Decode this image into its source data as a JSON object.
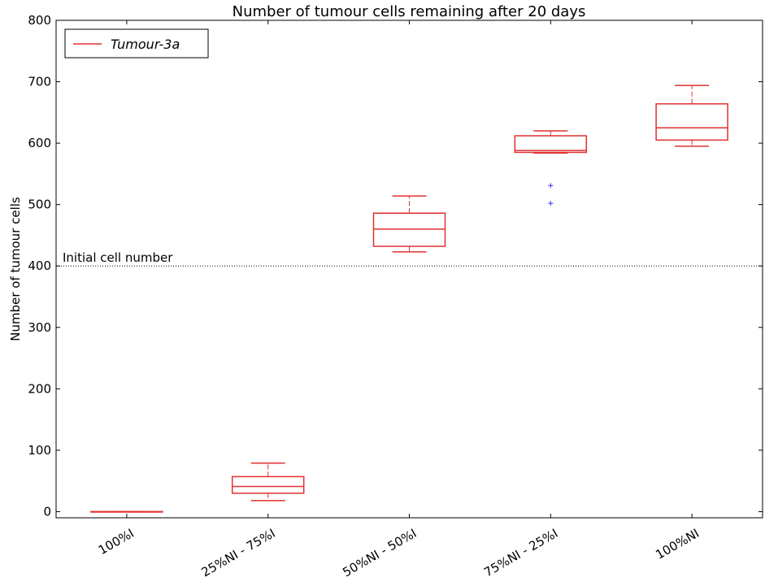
{
  "chart_data": {
    "type": "box",
    "title": "Number of tumour cells remaining after 20 days",
    "y_label": "Number of tumour cells",
    "categories": [
      "100%I",
      "25%NI - 75%I",
      "50%NI - 50%I",
      "75%NI - 25%I",
      "100%NI"
    ],
    "series": [
      {
        "name": "Tumour-3a",
        "color": "#e03030",
        "outlier_color": "#3030ff",
        "boxes": [
          {
            "min": 0,
            "q1": 0,
            "median": 0,
            "q3": 0,
            "max": 0,
            "outliers": []
          },
          {
            "min": 18,
            "q1": 30,
            "median": 41,
            "q3": 57,
            "max": 79,
            "outliers": []
          },
          {
            "min": 423,
            "q1": 432,
            "median": 460,
            "q3": 486,
            "max": 514,
            "outliers": []
          },
          {
            "min": 584,
            "q1": 585,
            "median": 588,
            "q3": 612,
            "max": 620,
            "outliers": [
              531,
              502
            ]
          },
          {
            "min": 595,
            "q1": 605,
            "median": 625,
            "q3": 664,
            "max": 694,
            "outliers": []
          }
        ]
      }
    ],
    "hline": {
      "value": 400,
      "label": "Initial cell number"
    },
    "ylim": [
      -10,
      800
    ],
    "yticks": [
      0,
      100,
      200,
      300,
      400,
      500,
      600,
      700,
      800
    ],
    "legend": "upper left"
  }
}
